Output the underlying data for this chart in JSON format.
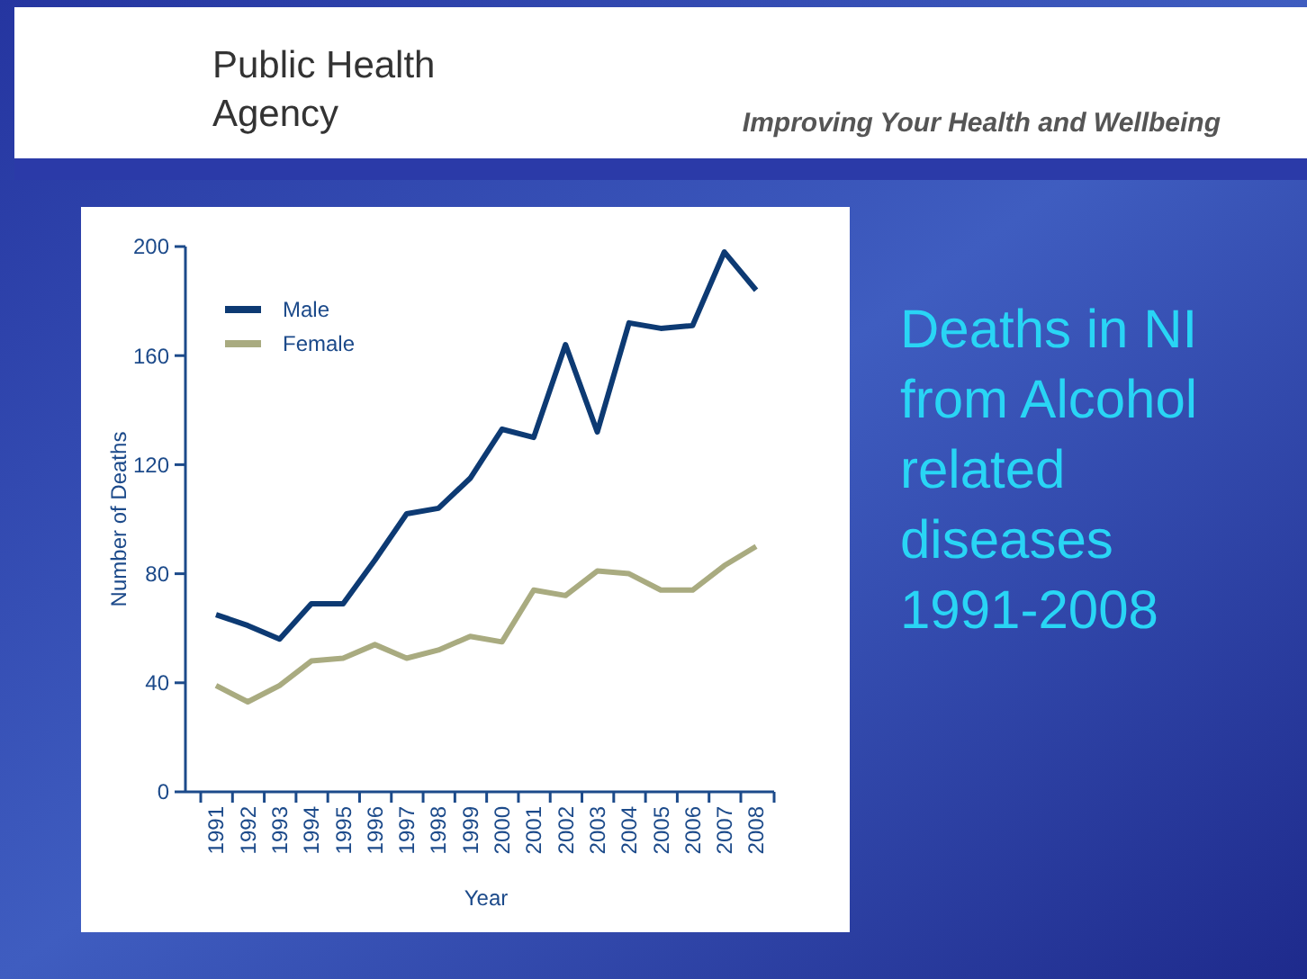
{
  "chart_data": {
    "type": "line",
    "title": "Deaths in NI from Alcohol related diseases 1991-2008",
    "xlabel": "Year",
    "ylabel": "Number of Deaths",
    "annotations": [
      "Public Health Agency",
      "Improving Your Health and Wellbeing"
    ],
    "categories": [
      "1991",
      "1992",
      "1993",
      "1994",
      "1995",
      "1996",
      "1997",
      "1998",
      "1999",
      "2000",
      "2001",
      "2002",
      "2003",
      "2004",
      "2005",
      "2006",
      "2007",
      "2008"
    ],
    "series": [
      {
        "name": "Male",
        "color": "#0d3a73",
        "values": [
          65,
          61,
          56,
          69,
          69,
          85,
          102,
          104,
          115,
          133,
          130,
          164,
          132,
          172,
          170,
          171,
          198,
          184
        ]
      },
      {
        "name": "Female",
        "color": "#a9ab80",
        "values": [
          39,
          33,
          39,
          48,
          49,
          54,
          49,
          52,
          57,
          55,
          74,
          72,
          81,
          80,
          74,
          74,
          83,
          90
        ]
      }
    ],
    "ylim": [
      0,
      200
    ],
    "yticks": [
      0,
      40,
      80,
      120,
      160,
      200
    ],
    "grid": false,
    "legend": "top left",
    "marker": "none",
    "line_style": "solid"
  }
}
